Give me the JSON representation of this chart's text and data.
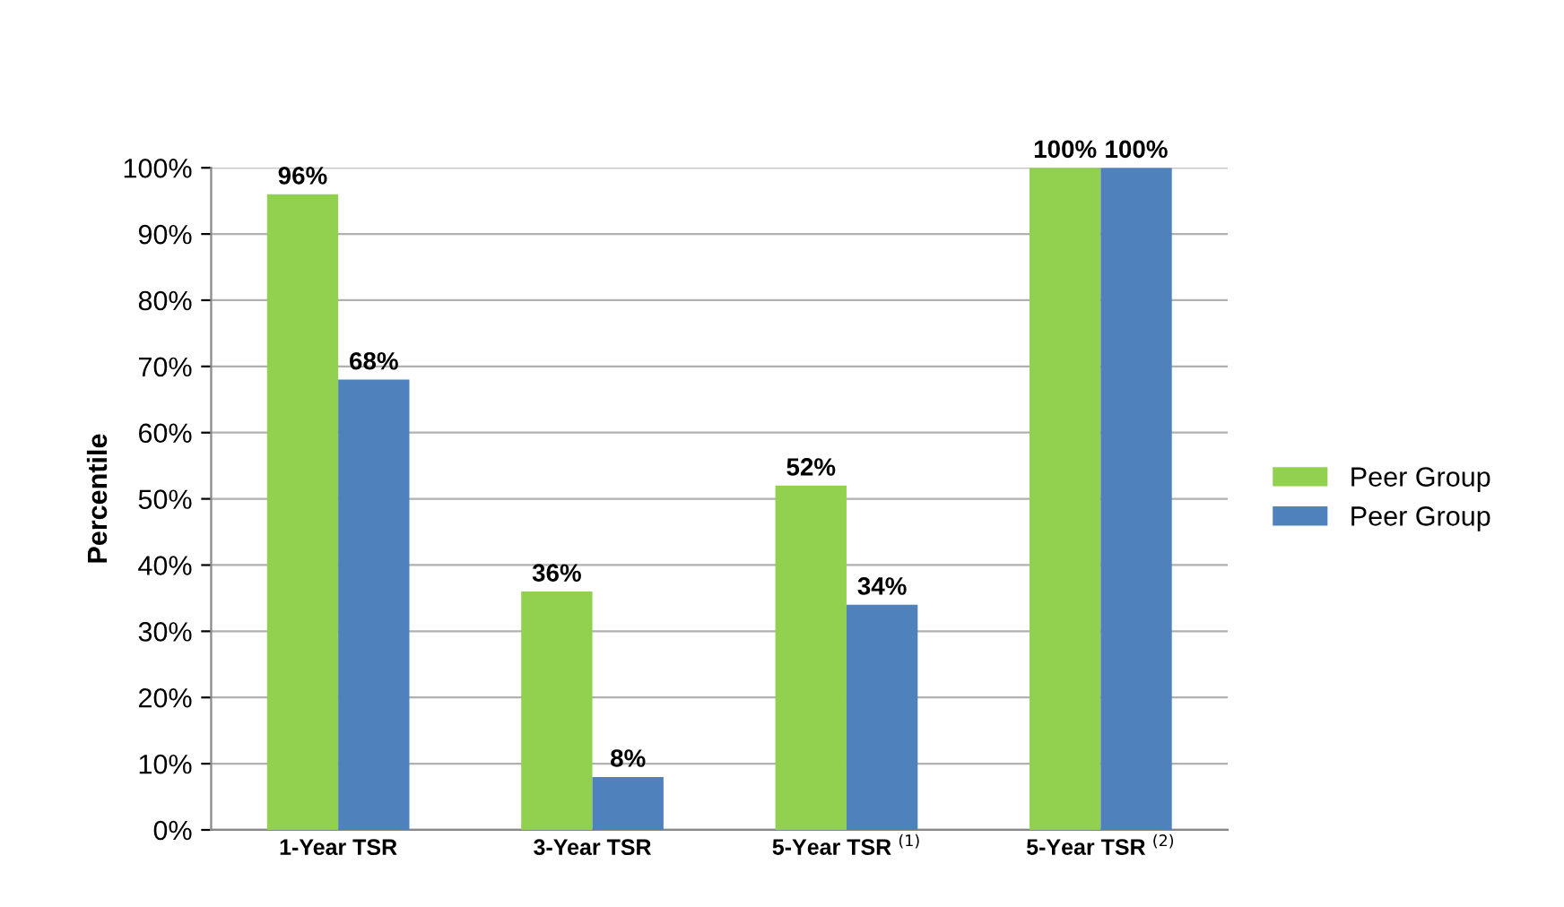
{
  "chart_data": {
    "type": "bar",
    "categories": [
      "1-Year TSR",
      "3-Year TSR",
      "5-Year TSR $^{(1)}$",
      "5-Year TSR $^{(2)}$"
    ],
    "ylabel": "Percentile",
    "series": [
      {
        "name": "Peer Group",
        "color": "#92d050",
        "values": [
          96,
          36,
          52,
          100
        ],
        "value_labels": [
          "96%",
          "36%",
          "52%",
          "100%"
        ]
      },
      {
        "name": "Peer Group",
        "color": "#4f81bd",
        "values": [
          68,
          8,
          34,
          100
        ],
        "value_labels": [
          "68%",
          "8%",
          "34%",
          "100%"
        ]
      }
    ],
    "ylim": [
      0,
      100
    ],
    "yticks": [
      {
        "value": 0,
        "label": "0%"
      },
      {
        "value": 10,
        "label": "10%"
      },
      {
        "value": 20,
        "label": "20%"
      },
      {
        "value": 30,
        "label": "30%"
      },
      {
        "value": 40,
        "label": "40%"
      },
      {
        "value": 50,
        "label": "50%"
      },
      {
        "value": 60,
        "label": "60%"
      },
      {
        "value": 70,
        "label": "70%"
      },
      {
        "value": 80,
        "label": "80%"
      },
      {
        "value": 90,
        "label": "90%"
      },
      {
        "value": 100,
        "label": "100%"
      }
    ],
    "grid": "y",
    "legend": "right"
  }
}
